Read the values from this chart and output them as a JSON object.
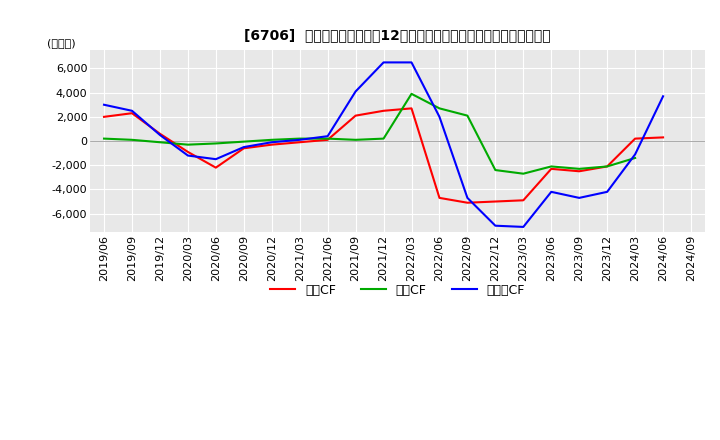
{
  "title": "[6706]  キャッシュフローの12か月移動合計の対前年同期増減額の推移",
  "ylabel": "(百万円)",
  "ylim": [
    -7500,
    7500
  ],
  "yticks": [
    -6000,
    -4000,
    -2000,
    0,
    2000,
    4000,
    6000
  ],
  "legend_labels": [
    "営業CF",
    "投資CF",
    "フリーCF"
  ],
  "line_colors": [
    "#ff0000",
    "#00aa00",
    "#0000ff"
  ],
  "background_color": "#ffffff",
  "plot_bg_color": "#e8e8e8",
  "grid_color": "#ffffff",
  "dates": [
    "2019/06",
    "2019/09",
    "2019/12",
    "2020/03",
    "2020/06",
    "2020/09",
    "2020/12",
    "2021/03",
    "2021/06",
    "2021/09",
    "2021/12",
    "2022/03",
    "2022/06",
    "2022/09",
    "2022/12",
    "2023/03",
    "2023/06",
    "2023/09",
    "2023/12",
    "2024/03",
    "2024/06",
    "2024/09"
  ],
  "営業CF": [
    2000,
    2300,
    600,
    -900,
    -2200,
    -600,
    -300,
    -100,
    100,
    2100,
    2500,
    2700,
    -4700,
    -5100,
    -5000,
    -4900,
    -2300,
    -2500,
    -2100,
    200,
    300,
    null
  ],
  "投資CF": [
    200,
    100,
    -100,
    -300,
    -200,
    -50,
    100,
    200,
    200,
    100,
    200,
    3900,
    2700,
    2100,
    -2400,
    -2700,
    -2100,
    -2300,
    -2100,
    -1400,
    null,
    null
  ],
  "フリーCF": [
    3000,
    2500,
    500,
    -1200,
    -1500,
    -500,
    -100,
    100,
    400,
    4100,
    6500,
    6500,
    2000,
    -4700,
    -7000,
    -7100,
    -4200,
    -4700,
    -4200,
    -1100,
    3700,
    null
  ]
}
